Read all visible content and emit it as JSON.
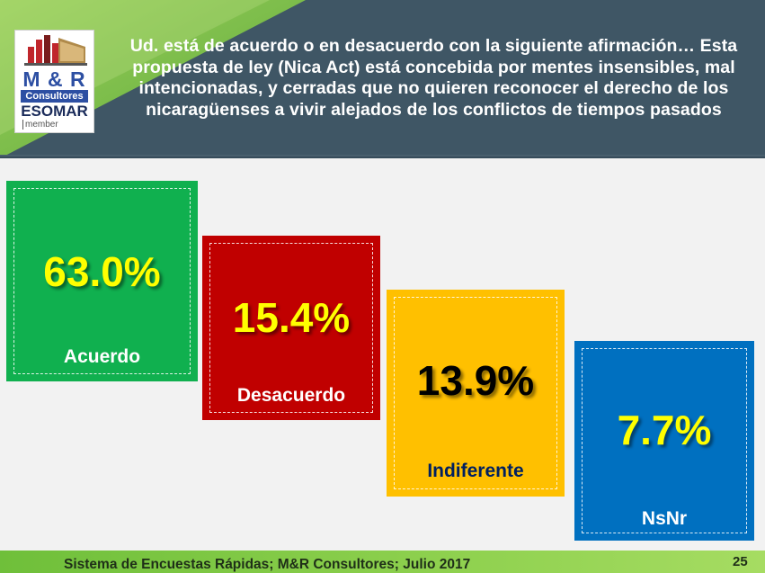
{
  "header": {
    "title": "Ud. está de acuerdo o en desacuerdo con la siguiente afirmación… Esta propuesta de ley (Nica Act) está concebida por mentes insensibles, mal intencionadas, y cerradas que no quieren reconocer el derecho de los nicaragüenses a vivir alejados de los conflictos de tiempos pasados"
  },
  "logo": {
    "brand": "M & R",
    "subtitle": "Consultores",
    "org": "ESOMAR",
    "tag": "member"
  },
  "chart_data": {
    "type": "bar",
    "categories": [
      "Acuerdo",
      "Desacuerdo",
      "Indiferente",
      "NsNr"
    ],
    "values": [
      63.0,
      15.4,
      13.9,
      7.7
    ],
    "value_labels": [
      "63.0%",
      "15.4%",
      "13.9%",
      "7.7%"
    ],
    "colors": [
      "#10b04f",
      "#c00000",
      "#ffc000",
      "#0070c0"
    ],
    "value_colors": [
      "#ffff00",
      "#ffff00",
      "#000000",
      "#ffff00"
    ],
    "label_colors": [
      "#ffffff",
      "#ffffff",
      "#002060",
      "#ffffff"
    ],
    "unit": "%"
  },
  "footer": {
    "text": "Sistema de Encuestas Rápidas; M&R Consultores; Julio 2017",
    "page": "25"
  }
}
